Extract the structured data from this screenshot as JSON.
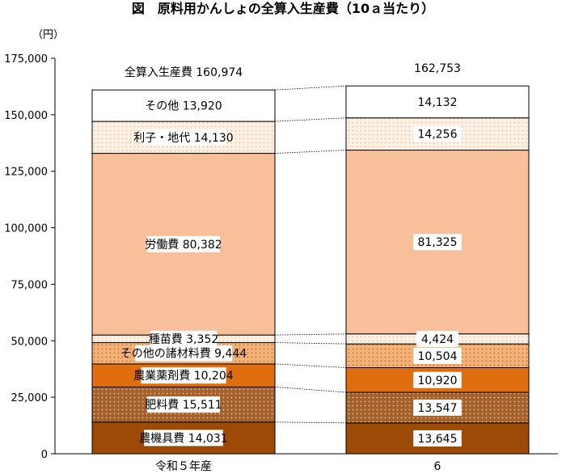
{
  "chart_data": {
    "type": "bar",
    "stacked": true,
    "title": "図　原料用かんしょの全算入生産費（10ａ当たり）",
    "unit_label": "（円）",
    "ylim": [
      0,
      175000
    ],
    "yticks": [
      0,
      25000,
      50000,
      75000,
      100000,
      125000,
      150000,
      175000
    ],
    "ytick_labels": [
      "0",
      "25,000",
      "50,000",
      "75,000",
      "100,000",
      "125,000",
      "150,000",
      "175,000"
    ],
    "grid": false,
    "categories": [
      "令和５年産",
      "6"
    ],
    "totals": [
      160974,
      162753
    ],
    "totals_labels": [
      "全算入生産費 160,974",
      "162,753"
    ],
    "series": [
      {
        "name": "農機具費",
        "values": [
          14031,
          13645
        ],
        "labels": [
          "農機具費 14,031",
          "13,645"
        ],
        "color": "#9c4a06",
        "pattern": "solid"
      },
      {
        "name": "肥料費",
        "values": [
          15511,
          13547
        ],
        "labels": [
          "肥料費 15,511",
          "13,547"
        ],
        "color": "#a5612b",
        "pattern": "dots"
      },
      {
        "name": "農業薬剤費",
        "values": [
          10204,
          10920
        ],
        "labels": [
          "農業薬剤費 10,204",
          "10,920"
        ],
        "color": "#e06d0e",
        "pattern": "solid"
      },
      {
        "name": "その他の諸材料費",
        "values": [
          9444,
          10504
        ],
        "labels": [
          "その他の諸材料費 9,444",
          "10,504"
        ],
        "color": "#f0a86a",
        "pattern": "dots"
      },
      {
        "name": "種苗費",
        "values": [
          3352,
          4424
        ],
        "labels": [
          "種苗費 3,352",
          "4,424"
        ],
        "color": "#fbe3cf",
        "pattern": "dots"
      },
      {
        "name": "労働費",
        "values": [
          80382,
          81325
        ],
        "labels": [
          "労働費 80,382",
          "81,325"
        ],
        "color": "#f8c09a",
        "pattern": "solid"
      },
      {
        "name": "利子・地代",
        "values": [
          14130,
          14256
        ],
        "labels": [
          "利子・地代 14,130",
          "14,256"
        ],
        "color": "#fbe8da",
        "pattern": "dots"
      },
      {
        "name": "その他",
        "values": [
          13920,
          14132
        ],
        "labels": [
          "その他 13,920",
          "14,132"
        ],
        "color": "#ffffff",
        "pattern": "solid"
      }
    ]
  }
}
